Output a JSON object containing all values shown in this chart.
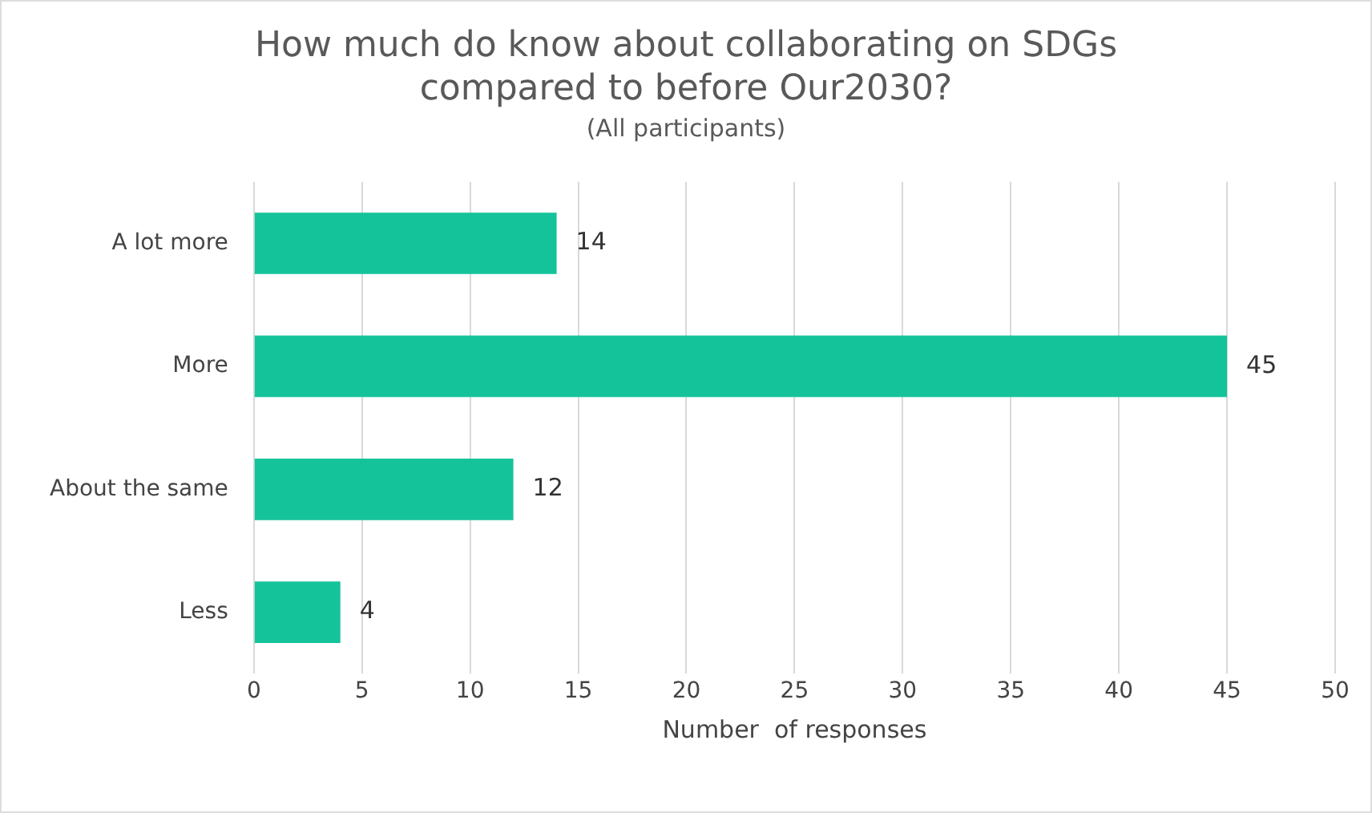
{
  "chart_data": {
    "type": "bar",
    "orientation": "horizontal",
    "title": "How much do know about collaborating on SDGs compared to before Our2030?",
    "subtitle": "(All participants)",
    "xlabel": "Number  of responses",
    "categories": [
      "A lot more",
      "More",
      "About the same",
      "Less"
    ],
    "values": [
      14,
      45,
      12,
      4
    ],
    "color": "#15c39a",
    "xlim": [
      0,
      50
    ],
    "xticks": [
      0,
      5,
      10,
      15,
      20,
      25,
      30,
      35,
      40,
      45,
      50
    ],
    "grid": "x",
    "legend": false,
    "data_labels": true
  }
}
